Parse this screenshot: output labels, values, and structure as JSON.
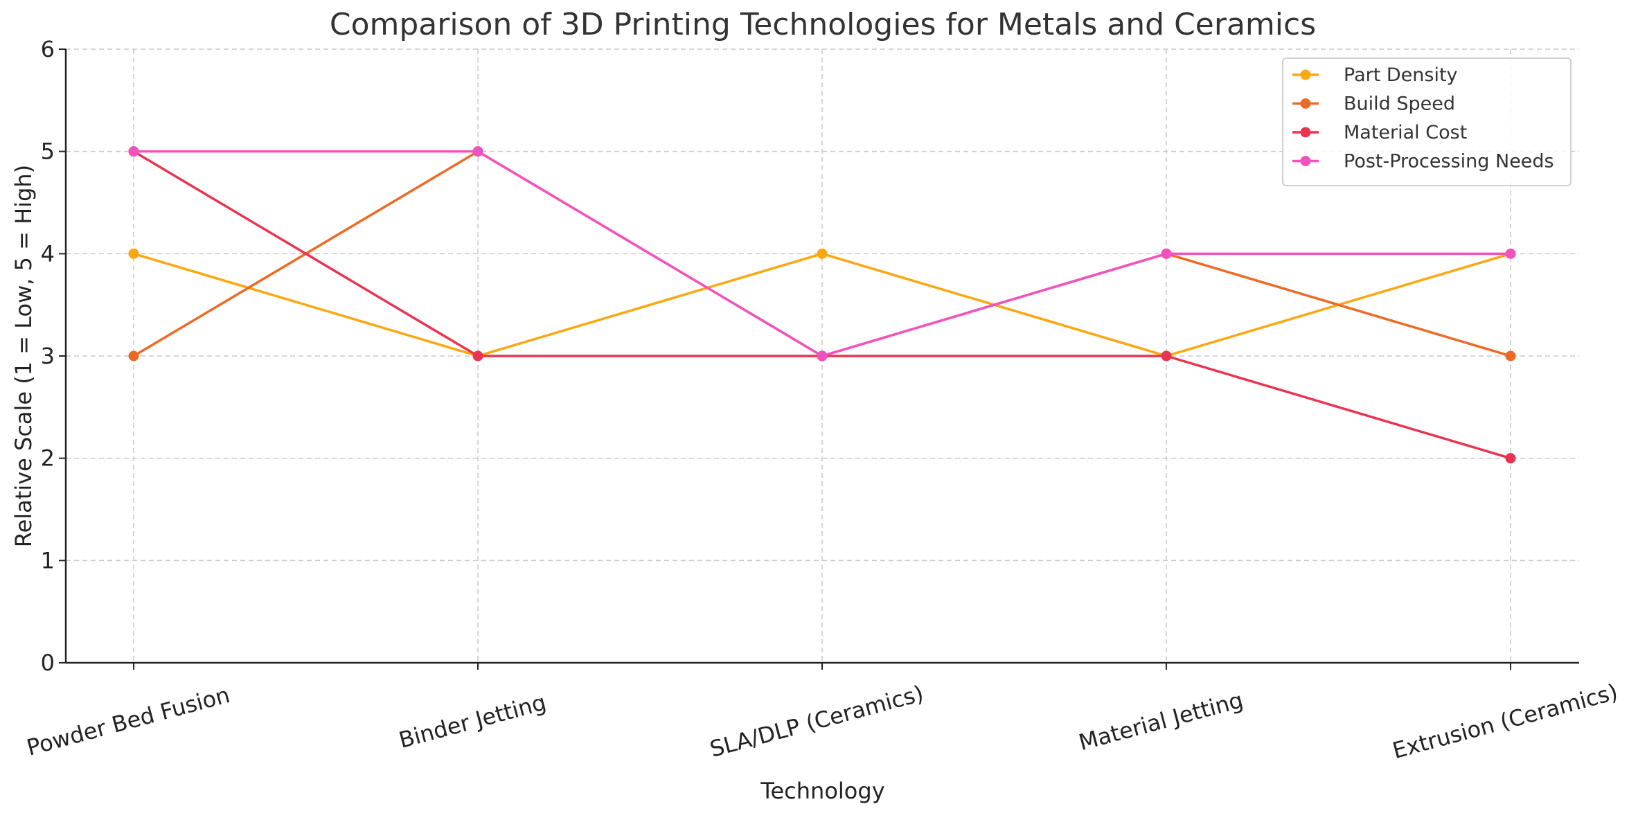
{
  "chart_data": {
    "type": "line",
    "title": "Comparison of 3D Printing Technologies for Metals and Ceramics",
    "xlabel": "Technology",
    "ylabel": "Relative Scale (1 = Low, 5 = High)",
    "categories": [
      "Powder Bed Fusion",
      "Binder Jetting",
      "SLA/DLP (Ceramics)",
      "Material Jetting",
      "Extrusion (Ceramics)"
    ],
    "ylim": [
      0,
      6
    ],
    "yticks": [
      0,
      1,
      2,
      3,
      4,
      5,
      6
    ],
    "grid": true,
    "legend_position": "top-right",
    "series": [
      {
        "name": "Part Density",
        "color": "#FCA70F",
        "values": [
          4,
          3,
          4,
          3,
          4
        ]
      },
      {
        "name": "Build Speed",
        "color": "#EE6A24",
        "values": [
          3,
          5,
          3,
          4,
          3
        ]
      },
      {
        "name": "Material Cost",
        "color": "#EC3251",
        "values": [
          5,
          3,
          3,
          3,
          2
        ]
      },
      {
        "name": "Post-Processing Needs",
        "color": "#F252BF",
        "values": [
          5,
          5,
          3,
          4,
          4
        ]
      }
    ]
  }
}
